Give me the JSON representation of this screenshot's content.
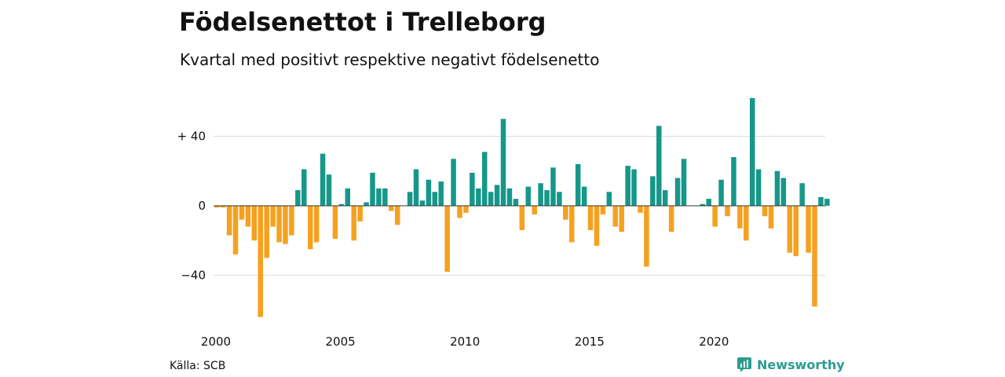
{
  "header": {
    "title": "Födelsenettot i Trelleborg",
    "subtitle": "Kvartal med positivt respektive negativt födelsenetto"
  },
  "footer": {
    "source": "Källa: SCB",
    "brand": "Newsworthy",
    "brand_icon": "newsworthy-logo-icon"
  },
  "colors": {
    "positive": "#16978a",
    "negative": "#f5a11f",
    "grid": "#dddddd",
    "zero_line": "#333333",
    "brand": "#2a9d8f"
  },
  "chart_data": {
    "type": "bar",
    "x_unit": "quarter",
    "start_period": "2000 Q1",
    "xlim": [
      2000,
      2024.75
    ],
    "ylim": [
      -65,
      62
    ],
    "y_ticks": [
      {
        "value": 40,
        "label": "+ 40"
      },
      {
        "value": 0,
        "label": "0"
      },
      {
        "value": -40,
        "label": "−40"
      }
    ],
    "x_ticks": [
      {
        "value": 2000,
        "label": "2000"
      },
      {
        "value": 2005,
        "label": "2005"
      },
      {
        "value": 2010,
        "label": "2010"
      },
      {
        "value": 2015,
        "label": "2015"
      },
      {
        "value": 2020,
        "label": "2020"
      }
    ],
    "grid": true,
    "values": [
      -1,
      -1,
      -17,
      -28,
      -8,
      -12,
      -20,
      -64,
      -30,
      -12,
      -21,
      -22,
      -17,
      9,
      21,
      -25,
      -21,
      30,
      18,
      -19,
      1,
      10,
      -20,
      -9,
      2,
      19,
      10,
      10,
      -3,
      -11,
      0,
      8,
      21,
      3,
      15,
      8,
      14,
      -38,
      27,
      -7,
      -4,
      19,
      10,
      31,
      8,
      12,
      50,
      10,
      4,
      -14,
      11,
      -5,
      13,
      9,
      22,
      8,
      -8,
      -21,
      24,
      11,
      -14,
      -23,
      -5,
      8,
      -12,
      -15,
      23,
      21,
      -4,
      -35,
      17,
      46,
      9,
      -15,
      16,
      27,
      0,
      0,
      1,
      4,
      -12,
      15,
      -6,
      28,
      -13,
      -20,
      62,
      21,
      -6,
      -13,
      20,
      16,
      -27,
      -29,
      13,
      -27,
      -58,
      5,
      4
    ]
  }
}
